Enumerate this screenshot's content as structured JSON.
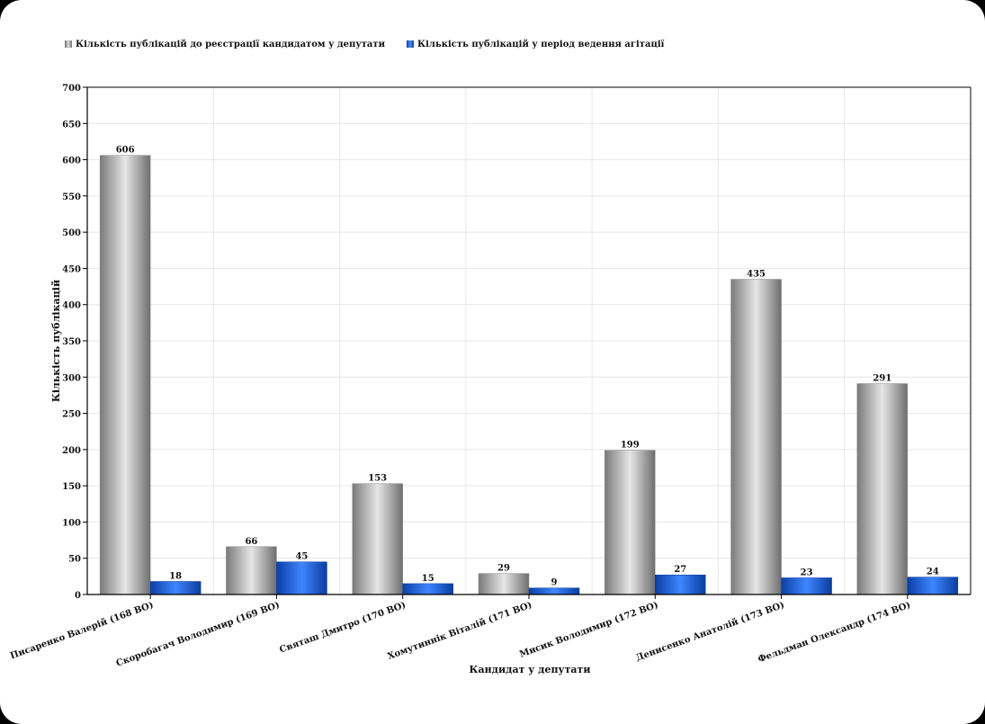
{
  "chart_data": {
    "type": "bar",
    "xlabel": "Кандидат у депутати",
    "ylabel": "Кількість публікацій",
    "ylim": [
      0,
      700
    ],
    "yticks": [
      0,
      50,
      100,
      150,
      200,
      250,
      300,
      350,
      400,
      450,
      500,
      550,
      600,
      650,
      700
    ],
    "grid": true,
    "legend_position": "top-left",
    "categories": [
      "Писаренко Валерій (168 ВО)",
      "Скоробагач Володимир (169 ВО)",
      "Святаш Дмитро (170 ВО)",
      "Хомутиннік Віталій (171 ВО)",
      "Мисик Володимир (172 ВО)",
      "Денисенко Анатолій (173 ВО)",
      "Фельдман Олександр (174 ВО)"
    ],
    "series": [
      {
        "name": "Кількість публікацій до реєстрації кандидатом у депутати",
        "color": "#a8a8a8",
        "values": [
          606,
          66,
          153,
          29,
          199,
          435,
          291
        ]
      },
      {
        "name": "Кількість публікацій у період ведення агітації",
        "color": "#1a62e0",
        "values": [
          18,
          45,
          15,
          9,
          27,
          23,
          24
        ]
      }
    ]
  }
}
